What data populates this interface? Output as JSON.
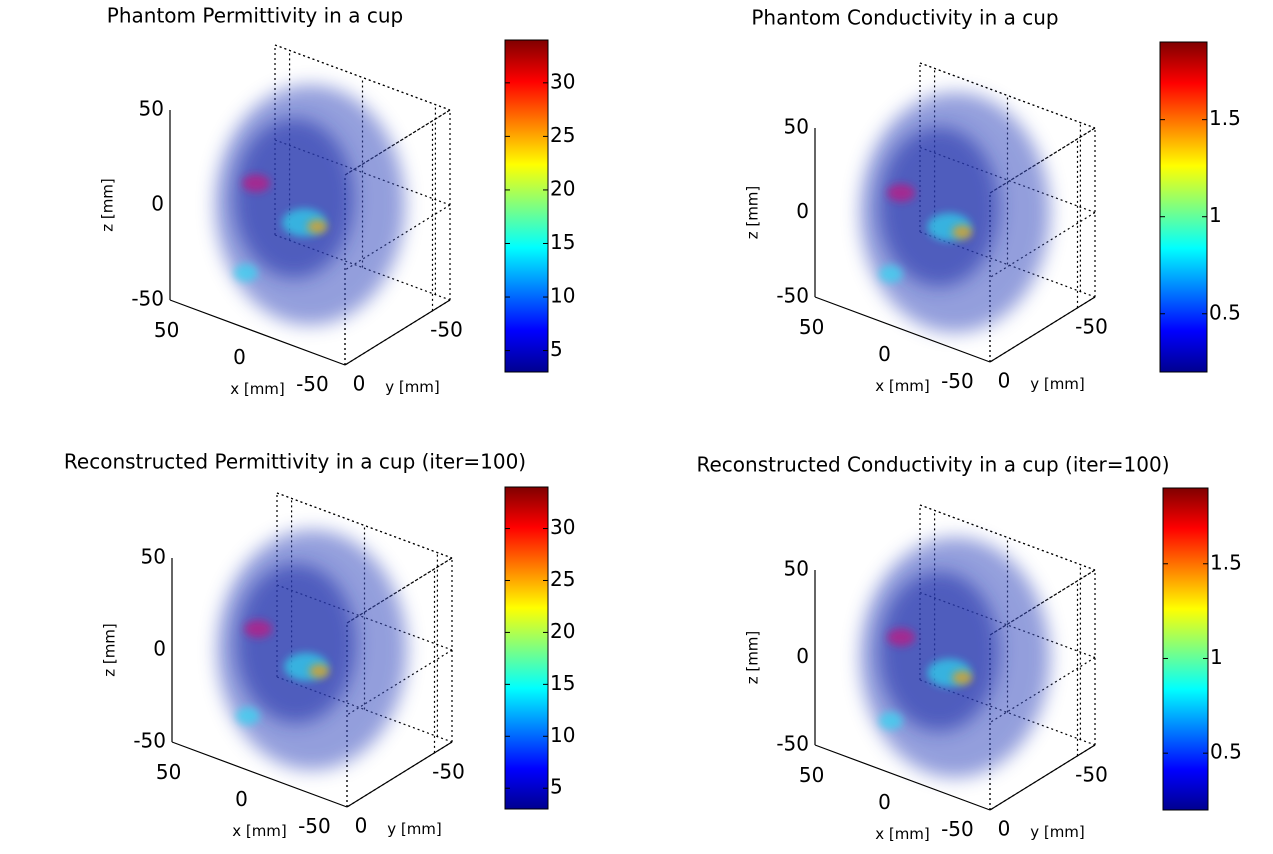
{
  "chart_data": [
    {
      "type": "volume",
      "title": "Phantom Permittivity in a cup",
      "xlabel": "x [mm]",
      "ylabel": "y [mm]",
      "zlabel": "z [mm]",
      "xlim": [
        -60,
        60
      ],
      "xticks": [
        -50,
        0,
        50
      ],
      "ylim": [
        -60,
        0
      ],
      "yticks": [
        -50,
        0
      ],
      "zlim": [
        -50,
        50
      ],
      "zticks": [
        -50,
        0,
        50
      ],
      "colormap": "jet",
      "clim": [
        3,
        34
      ],
      "cticks": [
        5,
        10,
        15,
        20,
        25,
        30
      ]
    },
    {
      "type": "volume",
      "title": "Phantom Conductivity in a cup",
      "xlabel": "x [mm]",
      "ylabel": "y [mm]",
      "zlabel": "z [mm]",
      "xlim": [
        -60,
        60
      ],
      "xticks": [
        -50,
        0,
        50
      ],
      "ylim": [
        -60,
        0
      ],
      "yticks": [
        -50,
        0
      ],
      "zlim": [
        -50,
        50
      ],
      "zticks": [
        -50,
        0,
        50
      ],
      "colormap": "jet",
      "clim": [
        0.2,
        1.9
      ],
      "cticks": [
        0.5,
        1,
        1.5
      ]
    },
    {
      "type": "volume",
      "title": "Reconstructed Permittivity in a cup (iter=100)",
      "xlabel": "x [mm]",
      "ylabel": "y [mm]",
      "zlabel": "z [mm]",
      "xlim": [
        -60,
        60
      ],
      "xticks": [
        -50,
        0,
        50
      ],
      "ylim": [
        -60,
        0
      ],
      "yticks": [
        -50,
        0
      ],
      "zlim": [
        -50,
        50
      ],
      "zticks": [
        -50,
        0,
        50
      ],
      "colormap": "jet",
      "clim": [
        3,
        34
      ],
      "cticks": [
        5,
        10,
        15,
        20,
        25,
        30
      ]
    },
    {
      "type": "volume",
      "title": "Reconstructed Conductivity in a cup (iter=100)",
      "xlabel": "x [mm]",
      "ylabel": "y [mm]",
      "zlabel": "z [mm]",
      "xlim": [
        -60,
        60
      ],
      "xticks": [
        -50,
        0,
        50
      ],
      "ylim": [
        -60,
        0
      ],
      "yticks": [
        -50,
        0
      ],
      "zlim": [
        -50,
        50
      ],
      "zticks": [
        -50,
        0,
        50
      ],
      "colormap": "jet",
      "clim": [
        0.2,
        1.9
      ],
      "cticks": [
        0.5,
        1,
        1.5
      ]
    }
  ]
}
